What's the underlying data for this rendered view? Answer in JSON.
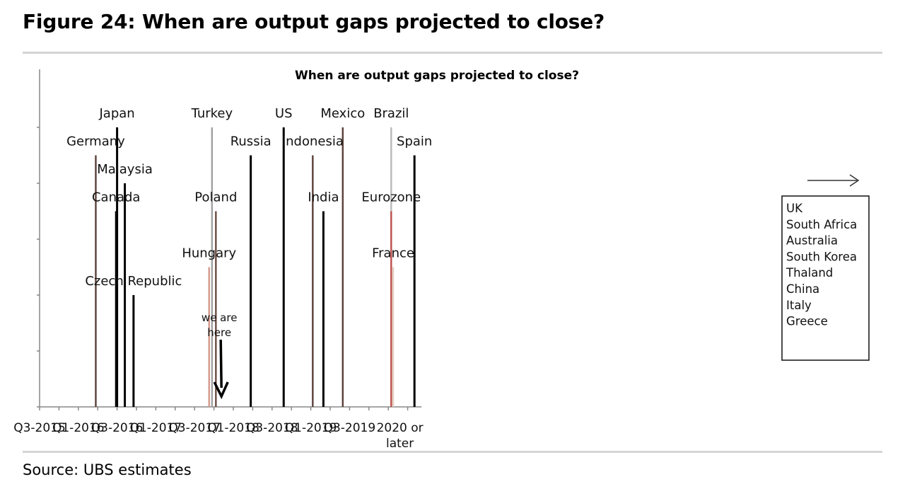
{
  "figure": {
    "title": "Figure 24: When are output gaps projected to close?",
    "source": "Source:  UBS estimates"
  },
  "chart_data": {
    "type": "bar",
    "title": "When are output gaps projected to close?",
    "x_axis": {
      "tick_labels": [
        "Q3-2015",
        "Q1-2016",
        "Q3-2016",
        "Q1-2017",
        "Q3-2017",
        "Q1-2018",
        "Q3-2018",
        "Q1-2019",
        "Q3-2019",
        "2020 or later"
      ],
      "tick_label_lines": [
        [
          "Q3-2015"
        ],
        [
          "Q1-2016"
        ],
        [
          "Q3-2016"
        ],
        [
          "Q1-2017"
        ],
        [
          "Q3-2017"
        ],
        [
          "Q1-2018"
        ],
        [
          "Q3-2018"
        ],
        [
          "Q1-2019"
        ],
        [
          "Q3-2019"
        ],
        [
          "2020 or",
          "later"
        ]
      ]
    },
    "y_axis": {
      "min": 0,
      "max": 5,
      "tick_labels_shown": false
    },
    "series": [
      {
        "label": "Germany",
        "quarter": 2.9,
        "height": 4.5,
        "color": "#5a4038"
      },
      {
        "label": "Japan",
        "quarter": 4.0,
        "height": 5.0,
        "color": "#000000"
      },
      {
        "label": "Canada",
        "quarter": 3.95,
        "height": 3.5,
        "color": "#000000"
      },
      {
        "label": "Malaysia",
        "quarter": 4.4,
        "height": 4.0,
        "color": "#000000"
      },
      {
        "label": "Czech Republic",
        "quarter": 4.85,
        "height": 2.0,
        "color": "#000000"
      },
      {
        "label": "Hungary",
        "quarter": 8.75,
        "height": 2.5,
        "color": "#d4998a"
      },
      {
        "label": "Turkey",
        "quarter": 8.9,
        "height": 5.0,
        "color": "#a0a0a0"
      },
      {
        "label": "Poland",
        "quarter": 9.1,
        "height": 3.5,
        "color": "#6a4a40"
      },
      {
        "label": "Russia",
        "quarter": 10.9,
        "height": 4.5,
        "color": "#000000"
      },
      {
        "label": "US",
        "quarter": 12.6,
        "height": 5.0,
        "color": "#000000"
      },
      {
        "label": "Indonesia",
        "quarter": 14.1,
        "height": 4.5,
        "color": "#5a4038"
      },
      {
        "label": "India",
        "quarter": 14.65,
        "height": 3.5,
        "color": "#000000"
      },
      {
        "label": "Mexico",
        "quarter": 15.65,
        "height": 5.0,
        "color": "#5a4038"
      },
      {
        "label": "Brazil",
        "quarter": 18.15,
        "height": 5.0,
        "color": "#b8b8b8"
      },
      {
        "label": "Eurozone",
        "quarter": 18.15,
        "height": 3.5,
        "color": "#c0504d"
      },
      {
        "label": "France",
        "quarter": 18.25,
        "height": 2.5,
        "color": "#e3cfc0"
      },
      {
        "label": "Spain",
        "quarter": 19.35,
        "height": 4.5,
        "color": "#000000"
      }
    ],
    "annotations": {
      "marker_text": [
        "we are",
        "here"
      ],
      "marker_quarter": 9.35,
      "later_group": [
        "UK",
        "South Africa",
        "Australia",
        "South Korea",
        "Thaland",
        "China",
        "Italy",
        "Greece"
      ]
    }
  }
}
